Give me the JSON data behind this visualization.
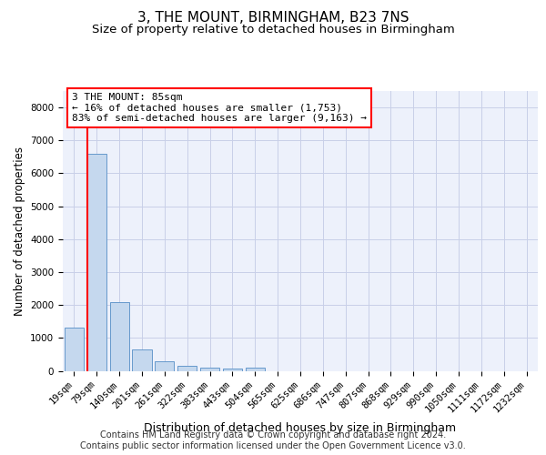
{
  "title": "3, THE MOUNT, BIRMINGHAM, B23 7NS",
  "subtitle": "Size of property relative to detached houses in Birmingham",
  "xlabel": "Distribution of detached houses by size in Birmingham",
  "ylabel": "Number of detached properties",
  "categories": [
    "19sqm",
    "79sqm",
    "140sqm",
    "201sqm",
    "261sqm",
    "322sqm",
    "383sqm",
    "443sqm",
    "504sqm",
    "565sqm",
    "625sqm",
    "686sqm",
    "747sqm",
    "807sqm",
    "868sqm",
    "929sqm",
    "990sqm",
    "1050sqm",
    "1111sqm",
    "1172sqm",
    "1232sqm"
  ],
  "values": [
    1310,
    6590,
    2080,
    650,
    290,
    145,
    100,
    80,
    100,
    0,
    0,
    0,
    0,
    0,
    0,
    0,
    0,
    0,
    0,
    0,
    0
  ],
  "bar_color": "#c5d8ee",
  "bar_edge_color": "#6699cc",
  "red_line_x": 0.575,
  "annotation_lines": [
    "3 THE MOUNT: 85sqm",
    "← 16% of detached houses are smaller (1,753)",
    "83% of semi-detached houses are larger (9,163) →"
  ],
  "ylim": [
    0,
    8500
  ],
  "yticks": [
    0,
    1000,
    2000,
    3000,
    4000,
    5000,
    6000,
    7000,
    8000
  ],
  "background_color": "#edf1fb",
  "grid_color": "#c8cfe8",
  "footer1": "Contains HM Land Registry data © Crown copyright and database right 2024.",
  "footer2": "Contains public sector information licensed under the Open Government Licence v3.0.",
  "title_fontsize": 11,
  "subtitle_fontsize": 9.5,
  "ylabel_fontsize": 8.5,
  "xlabel_fontsize": 9,
  "tick_fontsize": 7.5,
  "annot_fontsize": 8,
  "footer_fontsize": 7
}
